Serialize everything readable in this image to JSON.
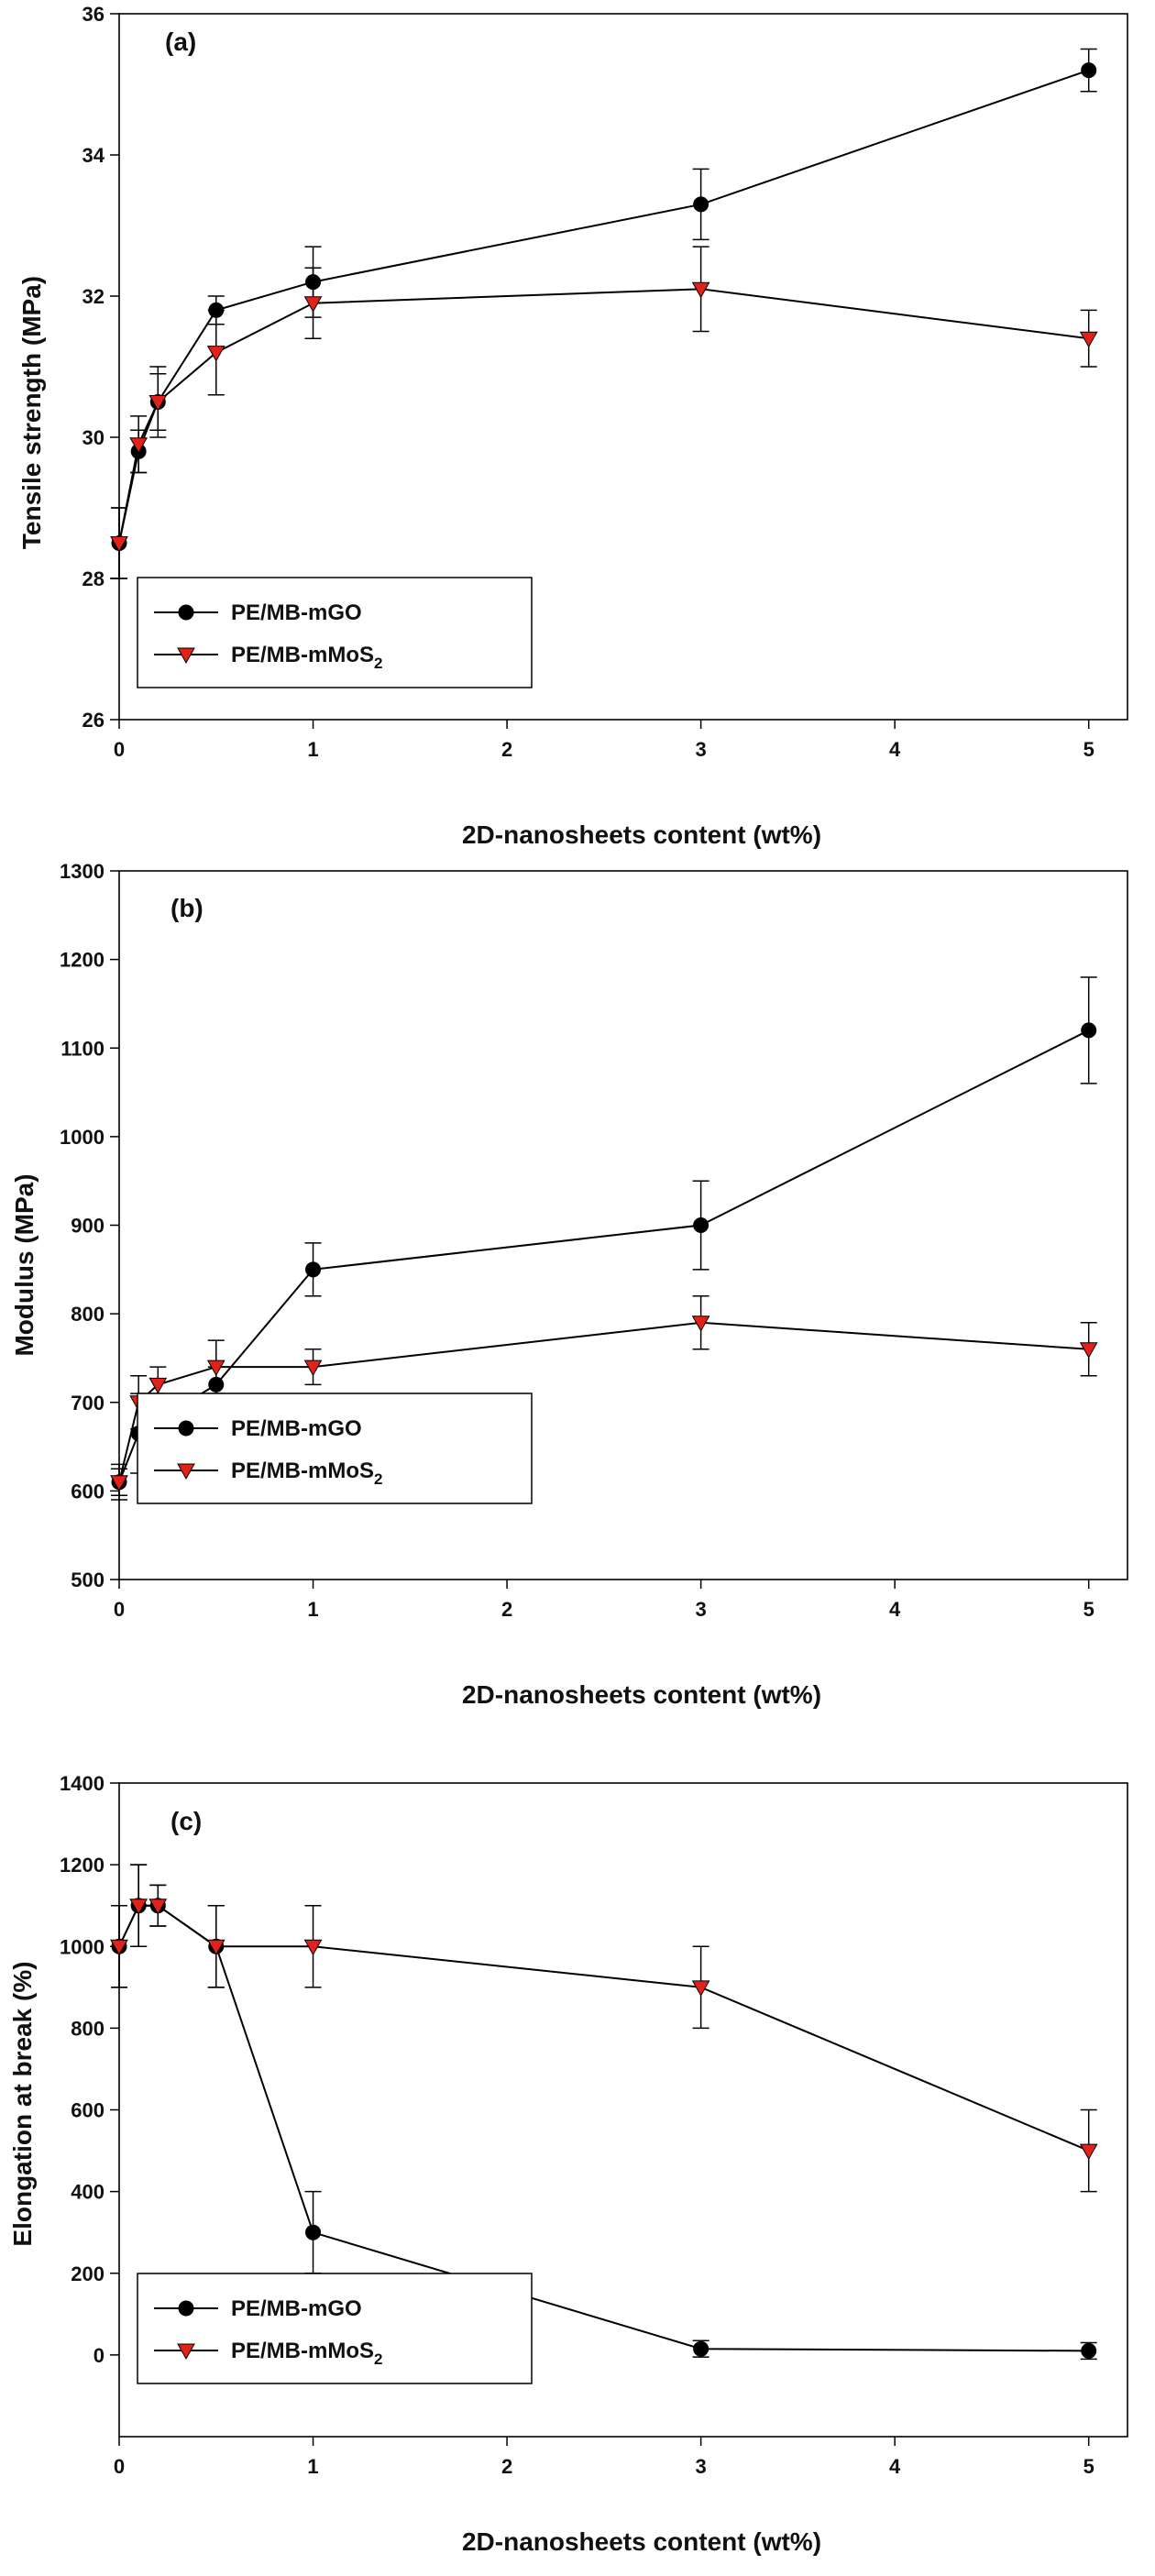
{
  "chart_data": [
    {
      "type": "line",
      "panel_label": "(a)",
      "xlabel": "2D-nanosheets content (wt%)",
      "ylabel": "Tensile strength (MPa)",
      "xlim": [
        0,
        5.2
      ],
      "ylim": [
        26,
        36
      ],
      "xticks": [
        "0",
        "1",
        "2",
        "3",
        "4",
        "5"
      ],
      "yticks": [
        "26",
        "28",
        "30",
        "32",
        "34",
        "36"
      ],
      "x": [
        0,
        0.1,
        0.2,
        0.5,
        1,
        3,
        5
      ],
      "legend_position": "bottom-left",
      "series": [
        {
          "name": "PE/MB-mGO",
          "marker": "circle",
          "color": "#000000",
          "values": [
            28.5,
            29.8,
            30.5,
            31.8,
            32.2,
            33.3,
            35.2
          ],
          "errors": [
            0.5,
            0.3,
            0.4,
            0.2,
            0.5,
            0.5,
            0.3
          ]
        },
        {
          "name": "PE/MB-mMoS",
          "name_sub": "2",
          "marker": "triangle-down",
          "color": "#e32119",
          "values": [
            28.5,
            29.9,
            30.5,
            31.2,
            31.9,
            32.1,
            31.4
          ],
          "errors": [
            0.5,
            0.4,
            0.5,
            0.6,
            0.5,
            0.6,
            0.4
          ]
        }
      ]
    },
    {
      "type": "line",
      "panel_label": "(b)",
      "xlabel": "2D-nanosheets content (wt%)",
      "ylabel": "Modulus (MPa)",
      "xlim": [
        0,
        5.2
      ],
      "ylim": [
        500,
        1300
      ],
      "xticks": [
        "0",
        "1",
        "2",
        "3",
        "4",
        "5"
      ],
      "yticks": [
        "500",
        "600",
        "700",
        "800",
        "900",
        "1000",
        "1100",
        "1200",
        "1300"
      ],
      "x": [
        0,
        0.1,
        0.2,
        0.5,
        1,
        3,
        5
      ],
      "legend_position": "bottom-left",
      "series": [
        {
          "name": "PE/MB-mGO",
          "marker": "circle",
          "color": "#000000",
          "values": [
            610,
            665,
            680,
            720,
            850,
            900,
            1120
          ],
          "errors": [
            20,
            45,
            30,
            20,
            30,
            50,
            60
          ]
        },
        {
          "name": "PE/MB-mMoS",
          "name_sub": "2",
          "marker": "triangle-down",
          "color": "#e32119",
          "values": [
            610,
            700,
            720,
            740,
            740,
            790,
            760
          ],
          "errors": [
            15,
            30,
            20,
            30,
            20,
            30,
            30
          ]
        }
      ]
    },
    {
      "type": "line",
      "panel_label": "(c)",
      "xlabel": "2D-nanosheets content (wt%)",
      "ylabel": "Elongation at break (%)",
      "xlim": [
        0,
        5.2
      ],
      "ylim": [
        -200,
        1400
      ],
      "xticks": [
        "0",
        "1",
        "2",
        "3",
        "4",
        "5"
      ],
      "yticks": [
        "0",
        "200",
        "400",
        "600",
        "800",
        "1000",
        "1200",
        "1400"
      ],
      "x": [
        0,
        0.1,
        0.2,
        0.5,
        1,
        3,
        5
      ],
      "legend_position": "bottom-left",
      "series": [
        {
          "name": "PE/MB-mGO",
          "marker": "circle",
          "color": "#000000",
          "values": [
            1000,
            1100,
            1100,
            1000,
            300,
            15,
            10
          ],
          "errors": [
            100,
            100,
            50,
            100,
            100,
            20,
            20
          ]
        },
        {
          "name": "PE/MB-mMoS",
          "name_sub": "2",
          "marker": "triangle-down",
          "color": "#e32119",
          "values": [
            1000,
            1100,
            1100,
            1000,
            1000,
            900,
            500
          ],
          "errors": [
            100,
            100,
            50,
            100,
            100,
            100,
            100
          ]
        }
      ]
    }
  ]
}
